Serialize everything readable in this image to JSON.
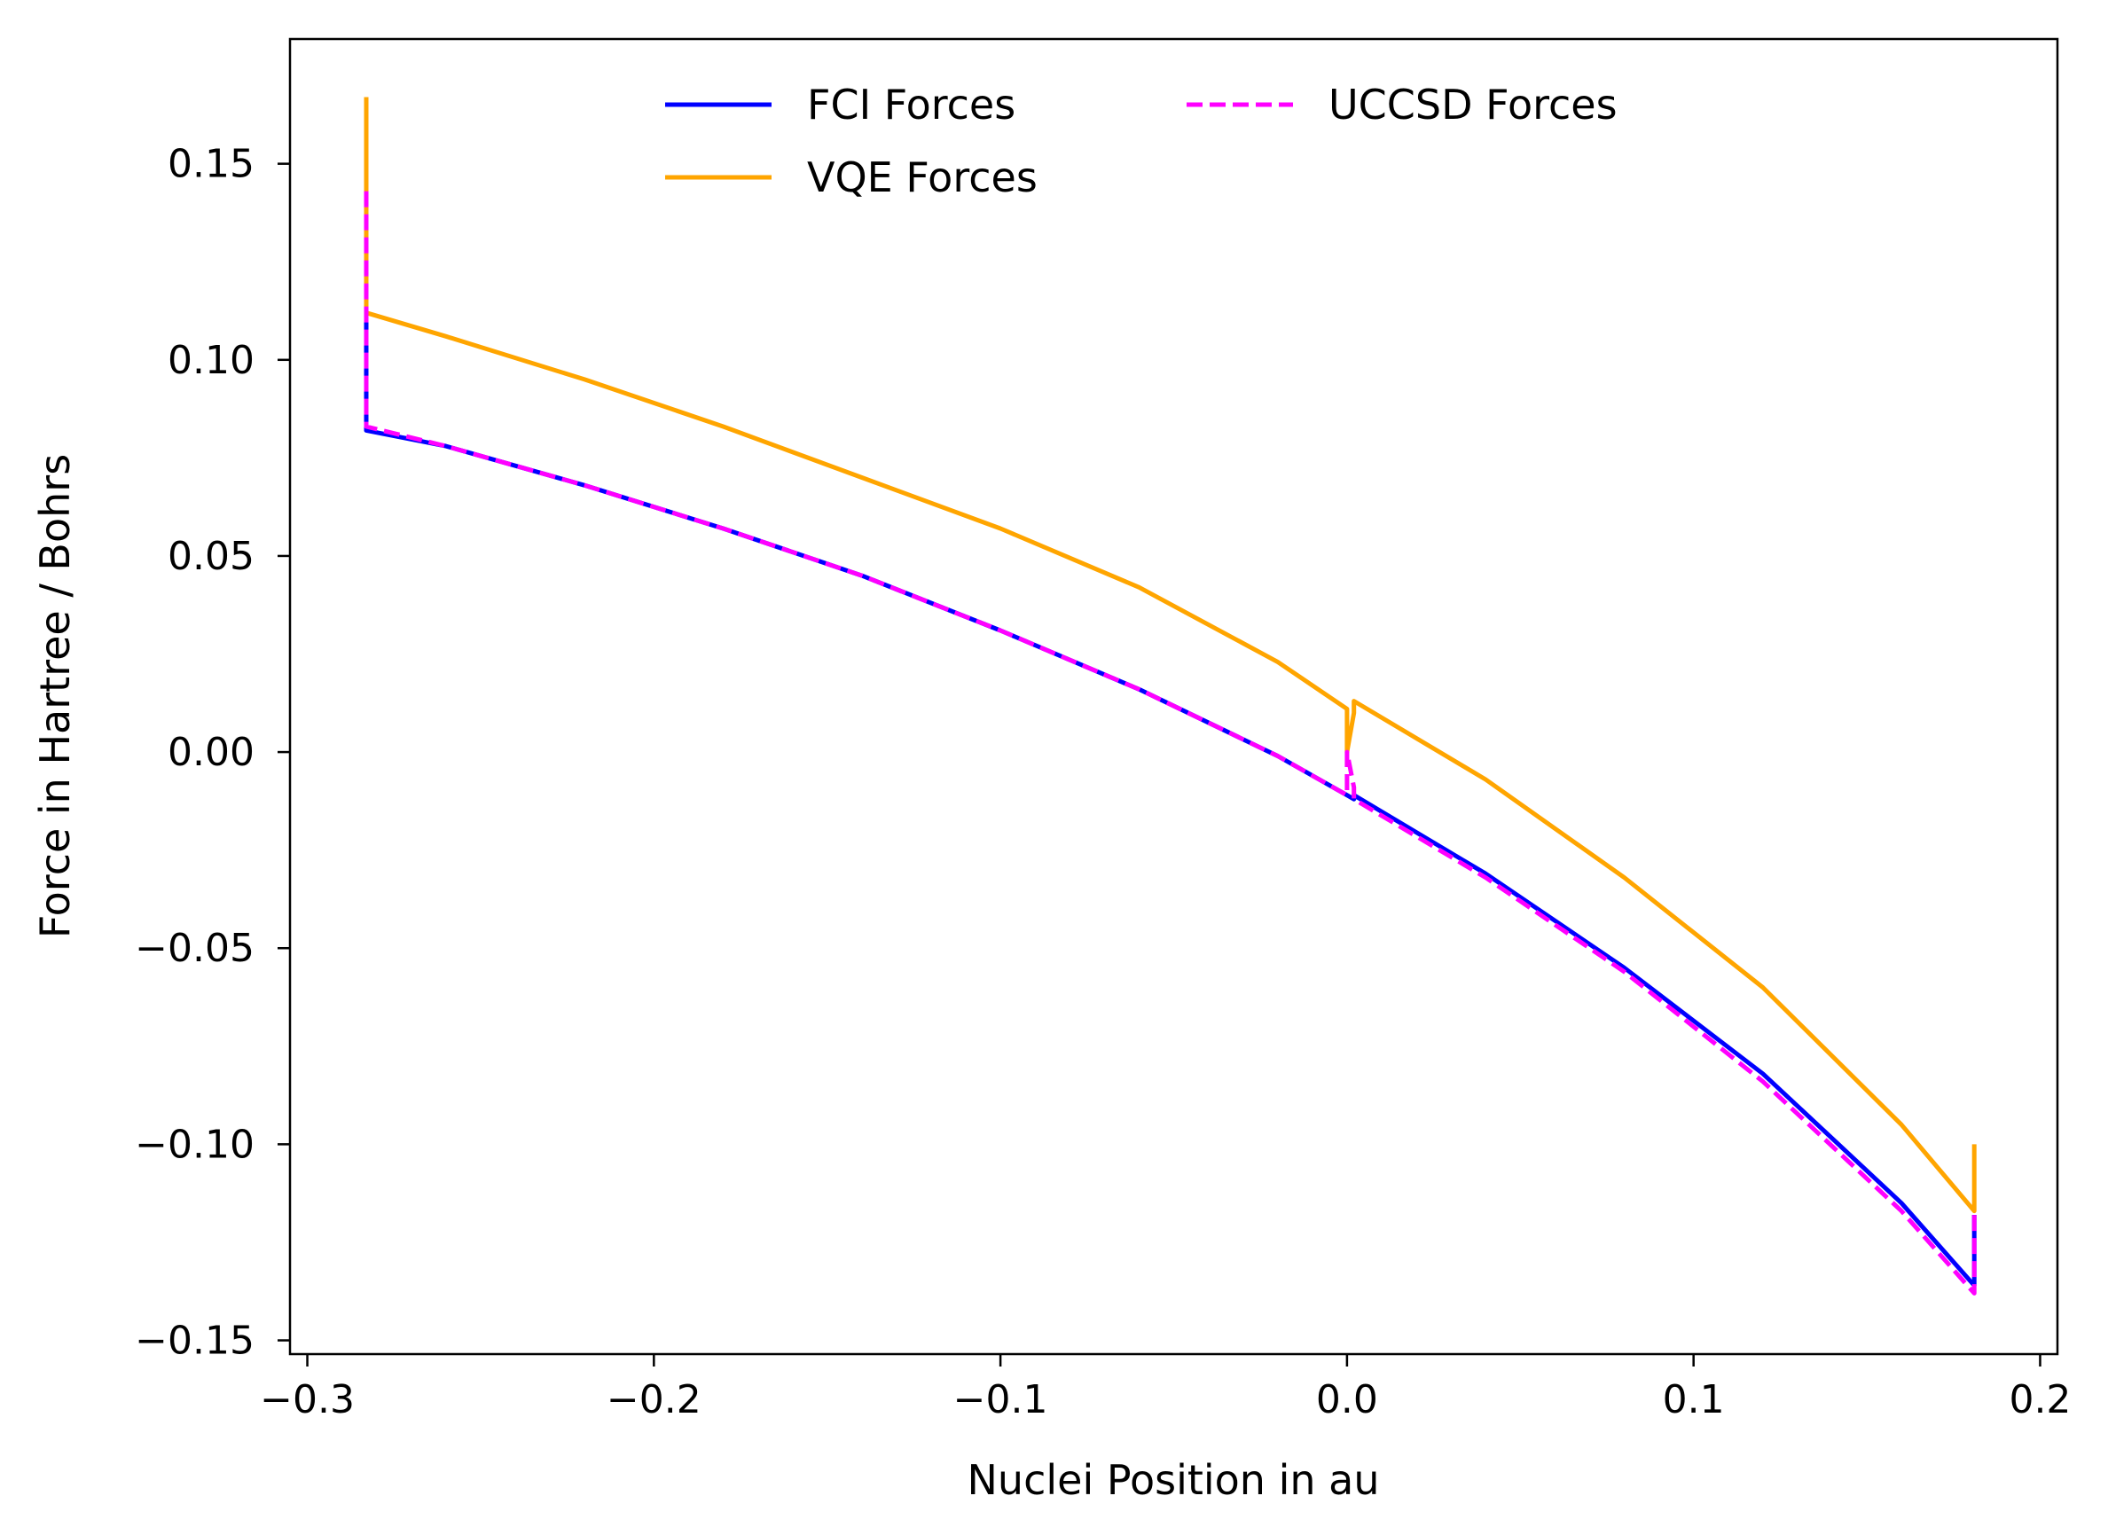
{
  "chart_data": {
    "type": "line",
    "xlabel": "Nuclei Position in au",
    "ylabel": "Force in Hartree / Bohrs",
    "xlim": [
      -0.305,
      0.205
    ],
    "ylim": [
      -0.1535,
      0.1818
    ],
    "x_ticks": [
      -0.3,
      -0.2,
      -0.1,
      0.0,
      0.1,
      0.2
    ],
    "x_tick_labels": [
      "−0.3",
      "−0.2",
      "−0.1",
      "0.0",
      "0.1",
      "0.2"
    ],
    "y_ticks": [
      0.15,
      0.1,
      0.05,
      0.0,
      -0.05,
      -0.1,
      -0.15
    ],
    "y_tick_labels": [
      "0.15",
      "0.10",
      "0.05",
      "0.00",
      "−0.05",
      "−0.10",
      "−0.15"
    ],
    "grid": false,
    "legend_position": "top-center",
    "series": [
      {
        "name": "FCI Forces",
        "color": "#0000ff",
        "style": "solid",
        "width": 5,
        "x": [
          -0.283,
          -0.283,
          -0.283,
          -0.26,
          -0.22,
          -0.18,
          -0.14,
          -0.1,
          -0.06,
          -0.02,
          0.0,
          0.002,
          0.002,
          0.04,
          0.08,
          0.12,
          0.16,
          0.181,
          0.181
        ],
        "y": [
          0.142,
          0.085,
          0.082,
          0.078,
          0.068,
          0.057,
          0.045,
          0.031,
          0.016,
          -0.001,
          -0.011,
          -0.012,
          -0.011,
          -0.031,
          -0.055,
          -0.082,
          -0.115,
          -0.136,
          -0.118
        ]
      },
      {
        "name": "VQE Forces",
        "color": "#ffa500",
        "style": "solid",
        "width": 5,
        "x": [
          -0.283,
          -0.283,
          -0.283,
          -0.26,
          -0.22,
          -0.18,
          -0.14,
          -0.1,
          -0.06,
          -0.02,
          0.0,
          0.0,
          0.002,
          0.002,
          0.04,
          0.08,
          0.12,
          0.16,
          0.181,
          0.181
        ],
        "y": [
          0.167,
          0.13,
          0.112,
          0.106,
          0.095,
          0.083,
          0.07,
          0.057,
          0.042,
          0.023,
          0.011,
          0.0,
          0.01,
          0.013,
          -0.007,
          -0.032,
          -0.06,
          -0.095,
          -0.117,
          -0.1
        ]
      },
      {
        "name": "UCCSD Forces",
        "color": "#ff00ff",
        "style": "dashed",
        "width": 5,
        "x": [
          -0.283,
          -0.283,
          -0.283,
          -0.26,
          -0.22,
          -0.18,
          -0.14,
          -0.1,
          -0.06,
          -0.02,
          0.0,
          0.0,
          0.002,
          0.002,
          0.04,
          0.08,
          0.12,
          0.16,
          0.181,
          0.181
        ],
        "y": [
          0.143,
          0.09,
          0.083,
          0.078,
          0.068,
          0.057,
          0.045,
          0.031,
          0.016,
          -0.001,
          -0.011,
          0.0,
          -0.009,
          -0.012,
          -0.032,
          -0.056,
          -0.084,
          -0.117,
          -0.138,
          -0.118
        ]
      }
    ]
  }
}
